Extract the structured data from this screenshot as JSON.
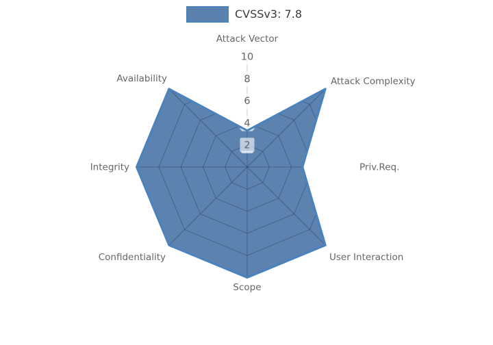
{
  "chart_data": {
    "type": "radar",
    "title": "",
    "categories": [
      "Attack Vector",
      "Attack Complexity",
      "Priv.Req.",
      "User Interaction",
      "Scope",
      "Confidentiality",
      "Integrity",
      "Availability"
    ],
    "series": [
      {
        "name": "CVSSv3: 7.8",
        "values": [
          3.3,
          10,
          5,
          10,
          10,
          10,
          10,
          10
        ]
      }
    ],
    "radial_ticks": [
      10,
      8,
      6,
      4,
      2
    ],
    "rlim": [
      0,
      10
    ],
    "grid": true,
    "legend_position": "top-center",
    "colors": {
      "fill": "#4571a4",
      "fill_opacity": 0.88,
      "edge": "#4a82bd",
      "grid_line": "#1a2840",
      "grid_opacity": 0.35,
      "tick_box": "#ffffff",
      "tick_box_opacity": 0.6,
      "tick_text": "#636363",
      "axis_label": "#666666",
      "legend_text": "#3b3b3b",
      "background": "#ffffff"
    }
  }
}
